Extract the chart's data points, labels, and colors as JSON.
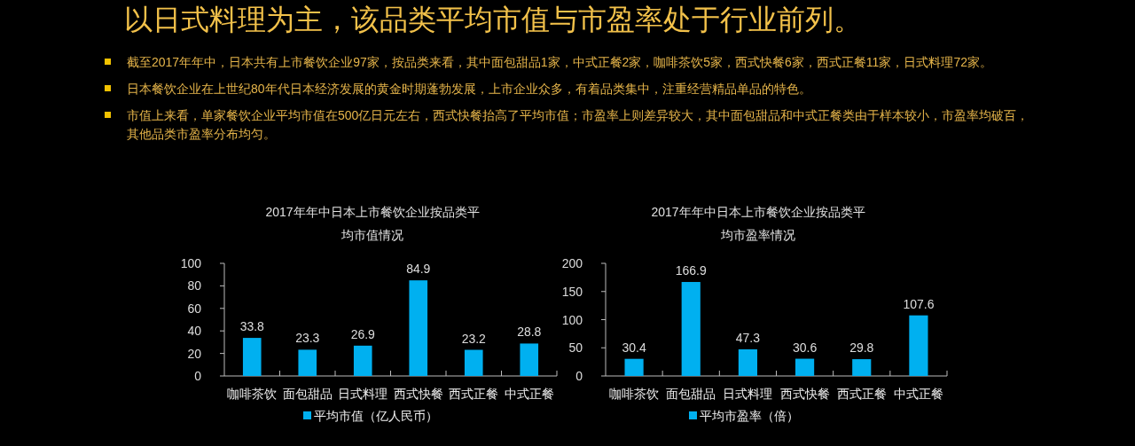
{
  "chart_data": [
    {
      "type": "other",
      "title": "以日式料理为主，该品类平均市值与市盈率处于行业前列。",
      "annotations": [
        "截至2017年年中，日本共有上市餐饮企业97家，按品类来看，其中面包甜品1家，中式正餐2家，咖啡茶饮5家，西式快餐6家，西式正餐11家，日式料理72家。",
        "日本餐饮企业在上世纪80年代日本经济发展的黄金时期蓬勃发展，上市企业众多，有着品类集中，注重经营精品单品的特色。",
        "市值上来看，单家餐饮企业平均市值在500亿日元左右，西式快餐抬高了平均市值；市盈率上则差异较大，其中面包甜品和中式正餐类由于样本较小，市盈率均破百，其他品类市盈率分布均匀。"
      ]
    },
    {
      "type": "bar",
      "title": "2017年年中日本上市餐饮企业按品类平均市值情况",
      "categories": [
        "咖啡茶饮",
        "面包甜品",
        "日式料理",
        "西式快餐",
        "西式正餐",
        "中式正餐"
      ],
      "series": [
        {
          "name": "平均市值（亿人民币）",
          "color": "#00b0f0",
          "values": [
            33.8,
            23.3,
            26.9,
            84.9,
            23.2,
            28.8
          ]
        }
      ],
      "ylim": [
        0,
        100
      ],
      "yticks": [
        0,
        20,
        40,
        60,
        80,
        100
      ],
      "data_labels": true,
      "legend": "bottom",
      "grid": false
    },
    {
      "type": "bar",
      "title": "2017年年中日本上市餐饮企业按品类平均市盈率情况",
      "categories": [
        "咖啡茶饮",
        "面包甜品",
        "日式料理",
        "西式快餐",
        "西式正餐",
        "中式正餐"
      ],
      "series": [
        {
          "name": "平均市盈率（倍）",
          "color": "#00b0f0",
          "values": [
            30.4,
            166.9,
            47.3,
            30.6,
            29.8,
            107.6
          ]
        }
      ],
      "ylim": [
        0,
        200
      ],
      "yticks": [
        0,
        50,
        100,
        150,
        200
      ],
      "data_labels": true,
      "legend": "bottom",
      "grid": false
    }
  ]
}
